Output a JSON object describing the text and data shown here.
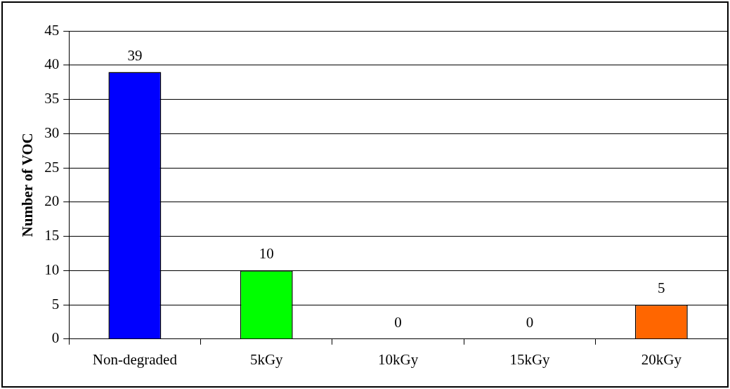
{
  "chart_data": {
    "type": "bar",
    "ylabel": "Number of VOC",
    "categories": [
      "Non-degraded",
      "5kGy",
      "10kGy",
      "15kGy",
      "20kGy"
    ],
    "values": [
      39,
      10,
      0,
      0,
      5
    ],
    "colors": [
      "#0000ff",
      "#00ff00",
      "#ffffff",
      "#ffffff",
      "#ff6600"
    ],
    "ylim": [
      0,
      45
    ],
    "yticks": [
      0,
      5,
      10,
      15,
      20,
      25,
      30,
      35,
      40,
      45
    ],
    "grid": "y",
    "data_labels": true
  }
}
